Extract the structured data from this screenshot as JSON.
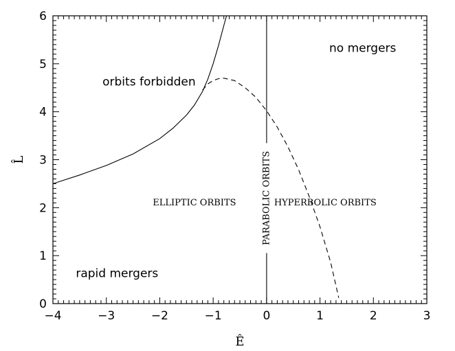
{
  "chart_data": {
    "type": "line",
    "xlabel": "Ê",
    "ylabel": "L̂",
    "xlim": [
      -4,
      3
    ],
    "ylim": [
      0,
      6
    ],
    "x_ticks": [
      -4,
      -3,
      -2,
      -1,
      0,
      1,
      2,
      3
    ],
    "x_tick_labels": [
      "−4",
      "−3",
      "−2",
      "−1",
      "0",
      "1",
      "2",
      "3"
    ],
    "y_ticks": [
      0,
      1,
      2,
      3,
      4,
      5,
      6
    ],
    "y_tick_labels": [
      "0",
      "1",
      "2",
      "3",
      "4",
      "5",
      "6"
    ],
    "grid": false,
    "series": [
      {
        "style": "solid",
        "x": [
          -4.0,
          -3.5,
          -3.0,
          -2.5,
          -2.0,
          -1.75,
          -1.5,
          -1.35,
          -1.2,
          -1.1,
          -1.0,
          -0.9,
          -0.8,
          -0.75,
          -0.72
        ],
        "y": [
          2.5,
          2.68,
          2.88,
          3.12,
          3.44,
          3.66,
          3.93,
          4.14,
          4.42,
          4.68,
          5.0,
          5.38,
          5.8,
          6.0,
          6.15
        ]
      },
      {
        "style": "dashed",
        "x": [
          -1.2,
          -1.1,
          -1.0,
          -0.9,
          -0.8,
          -0.6,
          -0.4,
          -0.2,
          0.0,
          0.2,
          0.4,
          0.6,
          0.8,
          1.0,
          1.2,
          1.35
        ],
        "y": [
          4.45,
          4.58,
          4.65,
          4.69,
          4.7,
          4.65,
          4.5,
          4.3,
          4.02,
          3.68,
          3.27,
          2.79,
          2.23,
          1.6,
          0.86,
          0.12
        ]
      },
      {
        "style": "solid",
        "x": [
          0,
          0
        ],
        "y": [
          0,
          6
        ]
      }
    ],
    "annotations": [
      {
        "text": "orbits forbidden",
        "x": -2.2,
        "y": 4.55,
        "kind": "region"
      },
      {
        "text": "no mergers",
        "x": 1.8,
        "y": 5.25,
        "kind": "region"
      },
      {
        "text": "rapid mergers",
        "x": -2.8,
        "y": 0.55,
        "kind": "region"
      },
      {
        "text": "ELLIPTIC ORBITS",
        "x": -1.35,
        "y": 2.05,
        "kind": "orbit"
      },
      {
        "text": "HYPERBOLIC ORBITS",
        "x": 1.1,
        "y": 2.05,
        "kind": "orbit"
      },
      {
        "text": "PARABOLIC ORBITS",
        "x": 0.0,
        "y": 2.2,
        "kind": "orbit-vertical"
      }
    ]
  }
}
